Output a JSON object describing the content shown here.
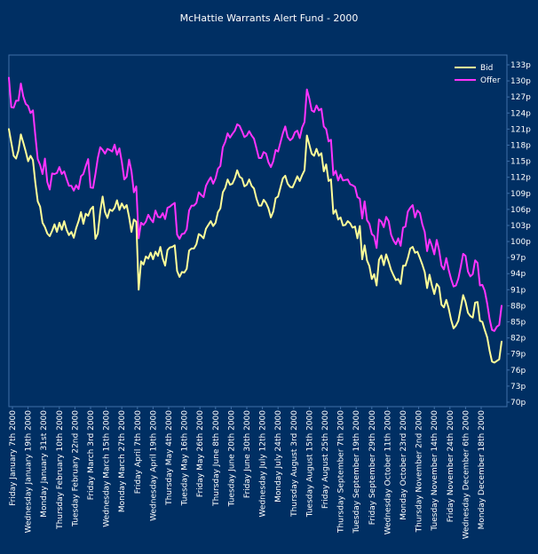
{
  "chart_data": {
    "type": "line",
    "title": "McHattie Warrants Alert Fund - 2000",
    "xlabel": "",
    "ylabel": "",
    "ylim": [
      70,
      133
    ],
    "y_ticks": [
      "133p",
      "130p",
      "127p",
      "124p",
      "121p",
      "118p",
      "115p",
      "112p",
      "109p",
      "106p",
      "103p",
      "100p",
      "97p",
      "94p",
      "91p",
      "88p",
      "85p",
      "82p",
      "79p",
      "76p",
      "73p",
      "70p"
    ],
    "x_ticks": [
      "Friday January 7th 2000",
      "Wednesday January 19th 2000",
      "Monday January 31st 2000",
      "Thursday February 10th 2000",
      "Tuesday February 22nd 2000",
      "Friday March 3rd 2000",
      "Wednesday March 15th 2000",
      "Monday March 27th 2000",
      "Friday April 7th 2000",
      "Wednesday April 19th 2000",
      "Thursday May 4th 2000",
      "Tuesday May 16th 2000",
      "Friday May 26th 2000",
      "Thursday June 8th 2000",
      "Tuesday June 20th 2000",
      "Friday June 30th 2000",
      "Wednesday July 12th 2000",
      "Monday July 24th 2000",
      "Thursday August 3rd 2000",
      "Tuesday August 15th 2000",
      "Friday August 25th 2000",
      "Thursday September 7th 2000",
      "Tuesday September 19th 2000",
      "Friday September 29th 2000",
      "Wednesday October 11th 2000",
      "Monday October 23rd 2000",
      "Thursday November 2nd 2000",
      "Tuesday November 14th 2000",
      "Friday November 24th 2000",
      "Wednesday December 6th 2000",
      "Monday December 18th 2000"
    ],
    "legend_position": "top-right",
    "grid": false,
    "series": [
      {
        "name": "Bid",
        "color": "#ffff99",
        "values": [
          121,
          118.5,
          116,
          115.5,
          117,
          120,
          118.5,
          116.8,
          115,
          116,
          115.2,
          111,
          107.5,
          106.5,
          103.5,
          102.7,
          101.5,
          101,
          102,
          103.2,
          101.8,
          103.5,
          102.2,
          103.8,
          102.2,
          101.2,
          101.8,
          100.7,
          102.5,
          103.8,
          105.5,
          103.3,
          105.2,
          104.8,
          106,
          106.5,
          100.5,
          101.5,
          105.6,
          108.4,
          105.5,
          104.4,
          106,
          105.7,
          106.3,
          107.7,
          105.9,
          107.1,
          106.2,
          106.8,
          104.6,
          101.8,
          104.1,
          103.7,
          91,
          96.3,
          95.7,
          97.2,
          96.8,
          97.9,
          96.7,
          98.1,
          97.3,
          99,
          96.8,
          95.5,
          98.4,
          98.9,
          99,
          99.3,
          94.5,
          93.4,
          94.3,
          94.2,
          94.9,
          98.3,
          98.7,
          98.7,
          99.5,
          101.4,
          101.1,
          100.6,
          102.4,
          103.1,
          103.8,
          102.9,
          103.5,
          105.5,
          106.2,
          109.2,
          110,
          111.6,
          110.6,
          110.8,
          111.8,
          113.3,
          112.1,
          111.8,
          110.3,
          110.6,
          111.6,
          110.4,
          109.9,
          108,
          106.7,
          106.7,
          107.8,
          107.2,
          106.2,
          104.5,
          105.6,
          108.1,
          108.4,
          110.1,
          111.8,
          112.3,
          110.8,
          110.2,
          110.1,
          111.1,
          112.2,
          111.3,
          112.4,
          113.3,
          119.8,
          118.1,
          116.4,
          116,
          117.3,
          116,
          116.5,
          113.1,
          114.4,
          111.3,
          111.6,
          105.2,
          105.9,
          104.1,
          104.5,
          103,
          103.1,
          103.8,
          103.4,
          102.6,
          102.8,
          100.6,
          102.9,
          96.7,
          99.3,
          96.5,
          95.4,
          93,
          93.9,
          91.8,
          96.6,
          97.4,
          95.6,
          97.6,
          96.2,
          94.7,
          93.7,
          92.8,
          93,
          92.1,
          95.5,
          95.5,
          96.9,
          98.7,
          99,
          97.9,
          98.1,
          96.9,
          95.7,
          94.3,
          91.3,
          93.8,
          91.8,
          90.2,
          92.1,
          91.5,
          88.2,
          87.7,
          89.1,
          87.5,
          85.4,
          83.8,
          84.3,
          85.2,
          87.6,
          90,
          88.7,
          86.7,
          86.1,
          85.8,
          88.6,
          88.7,
          85.2,
          85,
          83.5,
          82.1,
          79.6,
          77.6,
          77.4,
          77.7,
          78,
          81.3
        ]
      },
      {
        "name": "Offer",
        "color": "#ff33ff",
        "values": [
          130.6,
          125.1,
          125,
          126.3,
          126.3,
          129.5,
          127.1,
          125.7,
          125.3,
          124,
          124.5,
          119.8,
          115.4,
          114.3,
          112.6,
          115.5,
          111.1,
          109.7,
          112.7,
          112.6,
          112.8,
          113.9,
          112.6,
          113.1,
          111.7,
          110.4,
          110.4,
          109.5,
          110.5,
          109.8,
          112.2,
          112.6,
          114.1,
          115.4,
          110.1,
          110,
          112.6,
          115.6,
          117.6,
          117.1,
          116.4,
          117.3,
          117.1,
          116.8,
          118.1,
          116.2,
          117.4,
          114.9,
          111.6,
          112.1,
          115.3,
          113.1,
          109.2,
          110.3,
          100.6,
          103.5,
          103.1,
          103.7,
          105,
          104.2,
          103.6,
          105.8,
          104.6,
          104.5,
          105.3,
          104.2,
          106.3,
          106.5,
          106.9,
          107.2,
          101.3,
          100.5,
          101.4,
          101.5,
          102.3,
          105.8,
          106.7,
          106.7,
          107.2,
          109.2,
          108.7,
          108.3,
          110.4,
          111.3,
          112,
          110.8,
          111.8,
          113.6,
          114.1,
          117.6,
          118.6,
          120.2,
          119.4,
          120.1,
          120.7,
          121.9,
          121.6,
          120.6,
          119.5,
          119.8,
          120.6,
          119.8,
          119.2,
          117.4,
          115.6,
          115.6,
          116.7,
          116.4,
          114.8,
          113.9,
          115,
          117.1,
          116.8,
          118.5,
          120.2,
          121.5,
          119.5,
          118.9,
          119.3,
          120.4,
          120.7,
          119.3,
          121.3,
          122.3,
          128.4,
          126.7,
          124.5,
          124.2,
          125.4,
          124.5,
          124.8,
          121.5,
          121,
          118.7,
          119,
          112.4,
          113.2,
          111.4,
          112.5,
          111.4,
          111.5,
          111.6,
          110.7,
          110.5,
          110.2,
          108.3,
          108,
          104.3,
          107.5,
          104,
          103.3,
          101.4,
          101,
          98.8,
          104.1,
          103.7,
          102.7,
          104.6,
          103.8,
          101.3,
          100.2,
          99.5,
          100.6,
          99.2,
          102.6,
          102.8,
          105.6,
          106.3,
          106.8,
          104.5,
          105.8,
          105.3,
          103.2,
          101.8,
          98.2,
          100.4,
          99.2,
          97.6,
          100.3,
          98.4,
          95.5,
          94.8,
          96.9,
          94.7,
          93,
          91.6,
          91.8,
          93.1,
          95.3,
          97.7,
          97.3,
          94.4,
          93.5,
          93.9,
          96.5,
          96,
          91.8,
          91.9,
          90.8,
          88.4,
          85.5,
          83.5,
          83.3,
          84.1,
          84.4,
          88
        ]
      }
    ]
  }
}
